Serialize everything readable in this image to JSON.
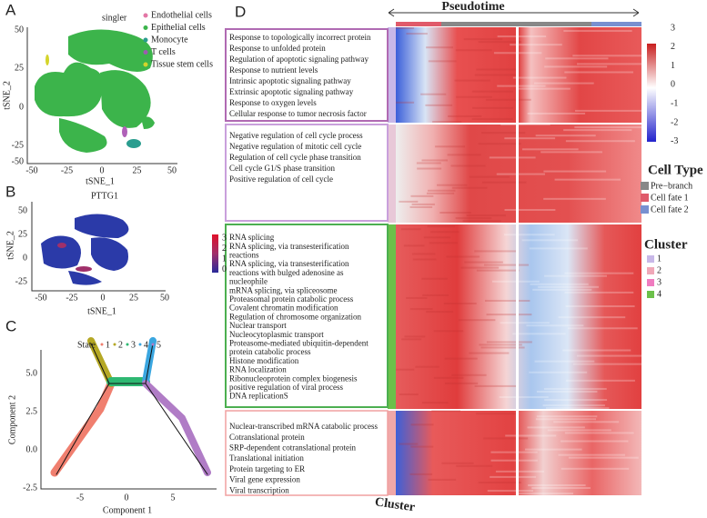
{
  "panels": {
    "A": {
      "label": "A",
      "title": "singler",
      "legend": [
        "Endothelial cells",
        "Epithelial cells",
        "Monocyte",
        "T cells",
        "Tissue stem cells"
      ],
      "x_label": "tSNE_1",
      "y_label": "tSNE_2",
      "xticks": [
        -50,
        -25,
        0,
        25,
        50
      ],
      "yticks": [
        50,
        25,
        0,
        -25,
        -50
      ]
    },
    "B": {
      "label": "B",
      "title": "PTTG1",
      "x_label": "tSNE_1",
      "y_label": "tSNE_2",
      "xticks": [
        -50,
        -25,
        0,
        25,
        50
      ],
      "yticks": [
        50,
        25,
        0,
        -25
      ],
      "colorbar": [
        3,
        2,
        1,
        0
      ]
    },
    "C": {
      "label": "C",
      "legend_title": "State",
      "legend": [
        "1",
        "2",
        "3",
        "4",
        "5"
      ],
      "x_label": "Component 1",
      "y_label": "Component 2",
      "xticks": [
        -5,
        0,
        5
      ],
      "yticks": [
        "5.0",
        "2.5",
        "0.0",
        "-2.5"
      ]
    },
    "D": {
      "label": "D",
      "title": "Pseudotime",
      "colorbar": [
        3,
        2,
        1,
        0,
        -1,
        -2,
        -3
      ],
      "cell_type_title": "Cell Type",
      "cell_types": [
        "Pre−branch",
        "Cell fate 1",
        "Cell fate 2"
      ],
      "cluster_title": "Cluster",
      "clusters": [
        "1",
        "2",
        "3",
        "4"
      ],
      "bottom_label": "Cluster",
      "go_boxes": [
        [
          "Response to topologically incorrect protein",
          "Response to unfolded protein",
          "Regulation of apoptotic signaling pathway",
          "Response to nutrient levels",
          "Intrinsic apoptotic signaling pathway",
          "Extrinsic apoptotic signaling pathway",
          "Response to oxygen levels",
          "Cellular response to tumor necrosis factor"
        ],
        [
          "Negative regulation of cell cycle process",
          "Negative regulation of mitotic cell cycle",
          "Regulation of cell cycle phase transition",
          "Cell cycle G1/S phase transition",
          "Positive regulation of cell cycle"
        ],
        [
          "RNA splicing",
          "RNA splicing, via transesterification",
          "reactions",
          "RNA splicing, via transesterification",
          "reactions with bulged adenosine as",
          "nucleophile",
          "mRNA splicing, via spliceosome",
          "Proteasomal protein catabolic process",
          "Covalent chromatin modification",
          "Regulation of chromosome organization",
          "Nuclear transport",
          "Nucleocytoplasmic transport",
          "Proteasome-mediated ubiquitin-dependent",
          "protein catabolic process",
          "Histone modification",
          "RNA localization",
          "Ribonucleoprotein complex biogenesis",
          "positive regulation of viral process",
          "DNA replicationS"
        ],
        [
          "Nuclear-transcribed mRNA catabolic process",
          "Cotranslational protein",
          "SRP-dependent cotranslational protein",
          "Translational initiation",
          "Protein targeting to ER",
          "Viral gene expression",
          "Viral transcription"
        ]
      ]
    }
  }
}
